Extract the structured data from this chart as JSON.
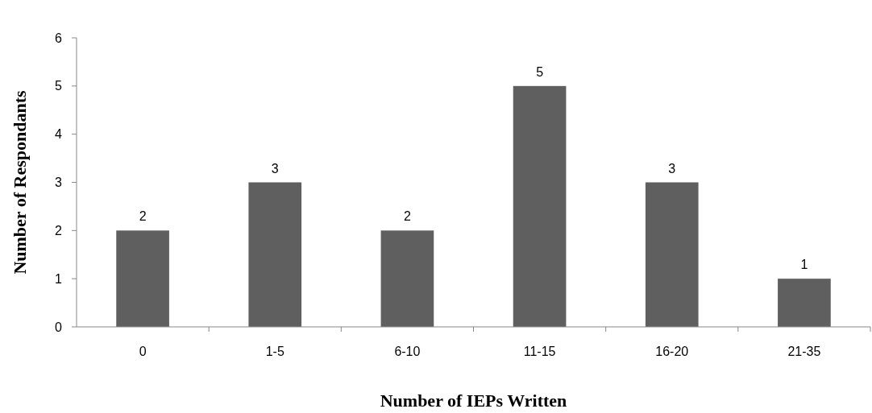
{
  "chart_data": {
    "type": "bar",
    "xlabel": "Number of IEPs Written",
    "ylabel": "Number of Respondants",
    "categories": [
      "0",
      "1-5",
      "6-10",
      "11-15",
      "16-20",
      "21-35"
    ],
    "values": [
      2,
      3,
      2,
      5,
      3,
      1
    ],
    "color": "#5f5f5f",
    "ylim": [
      0,
      6
    ],
    "yticks": [
      0,
      1,
      2,
      3,
      4,
      5,
      6
    ],
    "data_labels": true,
    "grid": false
  }
}
